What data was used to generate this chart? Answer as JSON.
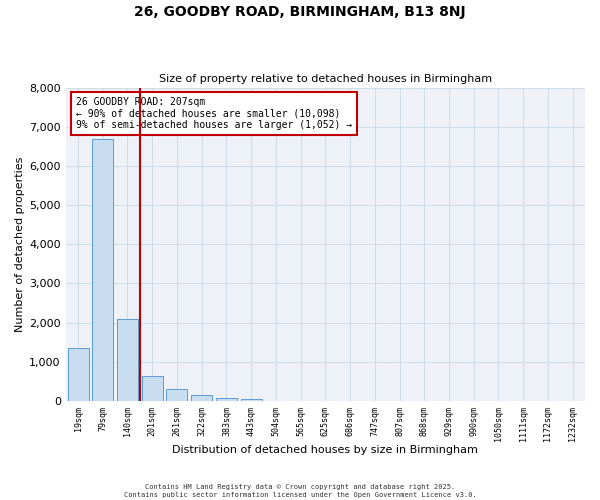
{
  "title": "26, GOODBY ROAD, BIRMINGHAM, B13 8NJ",
  "subtitle": "Size of property relative to detached houses in Birmingham",
  "xlabel": "Distribution of detached houses by size in Birmingham",
  "ylabel": "Number of detached properties",
  "bar_labels": [
    "19sqm",
    "79sqm",
    "140sqm",
    "201sqm",
    "261sqm",
    "322sqm",
    "383sqm",
    "443sqm",
    "504sqm",
    "565sqm",
    "625sqm",
    "686sqm",
    "747sqm",
    "807sqm",
    "868sqm",
    "929sqm",
    "990sqm",
    "1050sqm",
    "1111sqm",
    "1172sqm",
    "1232sqm"
  ],
  "bar_values": [
    1340,
    6680,
    2090,
    640,
    310,
    155,
    70,
    55,
    0,
    0,
    0,
    0,
    0,
    0,
    0,
    0,
    0,
    0,
    0,
    0,
    0
  ],
  "bar_color": "#c9ddf0",
  "bar_edge_color": "#5b9bd5",
  "vline_color": "#c00000",
  "ylim": [
    0,
    8000
  ],
  "yticks": [
    0,
    1000,
    2000,
    3000,
    4000,
    5000,
    6000,
    7000,
    8000
  ],
  "annotation_text": "26 GOODBY ROAD: 207sqm\n← 90% of detached houses are smaller (10,098)\n9% of semi-detached houses are larger (1,052) →",
  "annotation_box_color": "#ffffff",
  "annotation_box_edge_color": "#c00000",
  "footer_line1": "Contains HM Land Registry data © Crown copyright and database right 2025.",
  "footer_line2": "Contains public sector information licensed under the Open Government Licence v3.0.",
  "background_color": "#ffffff",
  "grid_color": "#d0dce8",
  "plot_bg_color": "#eef2f8"
}
